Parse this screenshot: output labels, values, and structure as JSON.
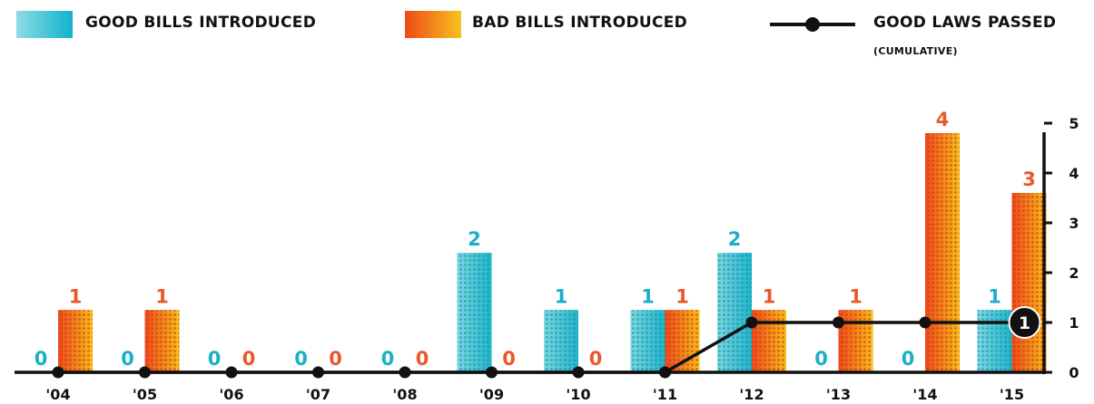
{
  "legend": {
    "good_bills": "GOOD BILLS INTRODUCED",
    "bad_bills": "BAD BILLS INTRODUCED",
    "good_laws": "GOOD LAWS PASSED",
    "good_laws_sub": "(CUMULATIVE)"
  },
  "colors": {
    "good": "#1fb5c9",
    "good_light": "#7fd6e0",
    "bad": "#ec4a1c",
    "bad_light": "#f4c21a",
    "line": "#111111",
    "good_label": "#1aaec9",
    "bad_label": "#e9582a"
  },
  "chart_data": {
    "type": "bar",
    "categories": [
      "'04",
      "'05",
      "'06",
      "'07",
      "'08",
      "'09",
      "'10",
      "'11",
      "'12",
      "'13",
      "'14",
      "'15"
    ],
    "series": [
      {
        "name": "GOOD BILLS INTRODUCED",
        "values": [
          0,
          0,
          0,
          0,
          0,
          2,
          1,
          1,
          2,
          0,
          0,
          1
        ]
      },
      {
        "name": "BAD BILLS INTRODUCED",
        "values": [
          1,
          1,
          0,
          0,
          0,
          0,
          0,
          1,
          1,
          1,
          4,
          3
        ]
      },
      {
        "name": "GOOD LAWS PASSED",
        "type": "line",
        "cumulative": true,
        "values": [
          0,
          0,
          0,
          0,
          0,
          0,
          0,
          0,
          1,
          1,
          1,
          1
        ]
      }
    ],
    "bar_labels_good": [
      "0",
      "0",
      "0",
      "0",
      "0",
      "2",
      "1",
      "1",
      "2",
      "0",
      "0",
      "1"
    ],
    "bar_labels_bad": [
      "1",
      "1",
      "0",
      "0",
      "0",
      "0",
      "0",
      "1",
      "1",
      "1",
      "4",
      "3"
    ],
    "line_end_label": "1",
    "y_axis": {
      "position": "right",
      "ticks": [
        "0",
        "1",
        "2",
        "3",
        "4",
        "5"
      ],
      "ylim": [
        0,
        5
      ]
    },
    "note": "Bar heights are drawn on a scale that does not follow the printed numbers exactly; each bar carries its own printed label.",
    "bar_heights": {
      "good": [
        0,
        0,
        0,
        0,
        0,
        2.4,
        1.25,
        1.25,
        2.4,
        0,
        0,
        1.25
      ],
      "bad": [
        1.25,
        1.25,
        0,
        0,
        0,
        0,
        0,
        1.25,
        1.25,
        1.25,
        4.8,
        3.6
      ]
    }
  }
}
